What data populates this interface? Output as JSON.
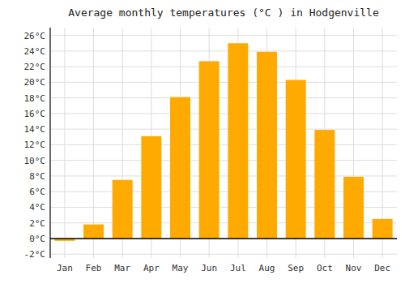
{
  "chart_data": {
    "type": "bar",
    "title": "Average monthly temperatures (°C ) in Hodgenville",
    "categories": [
      "Jan",
      "Feb",
      "Mar",
      "Apr",
      "May",
      "Jun",
      "Jul",
      "Aug",
      "Sep",
      "Oct",
      "Nov",
      "Dec"
    ],
    "values": [
      -0.3,
      1.8,
      7.5,
      13.1,
      18.1,
      22.7,
      25.0,
      23.9,
      20.3,
      13.9,
      7.9,
      2.5
    ],
    "color": "#FFAA00",
    "ylim": [
      -2.5,
      27
    ],
    "yticks": [
      {
        "value": -2,
        "label": "-2°C"
      },
      {
        "value": 0,
        "label": "0°C"
      },
      {
        "value": 2,
        "label": "2°C"
      },
      {
        "value": 4,
        "label": "4°C"
      },
      {
        "value": 6,
        "label": "6°C"
      },
      {
        "value": 8,
        "label": "8°C"
      },
      {
        "value": 10,
        "label": "10°C"
      },
      {
        "value": 12,
        "label": "12°C"
      },
      {
        "value": 14,
        "label": "14°C"
      },
      {
        "value": 16,
        "label": "16°C"
      },
      {
        "value": 18,
        "label": "18°C"
      },
      {
        "value": 20,
        "label": "20°C"
      },
      {
        "value": 22,
        "label": "22°C"
      },
      {
        "value": 24,
        "label": "24°C"
      },
      {
        "value": 26,
        "label": "26°C"
      }
    ],
    "grid": true
  }
}
